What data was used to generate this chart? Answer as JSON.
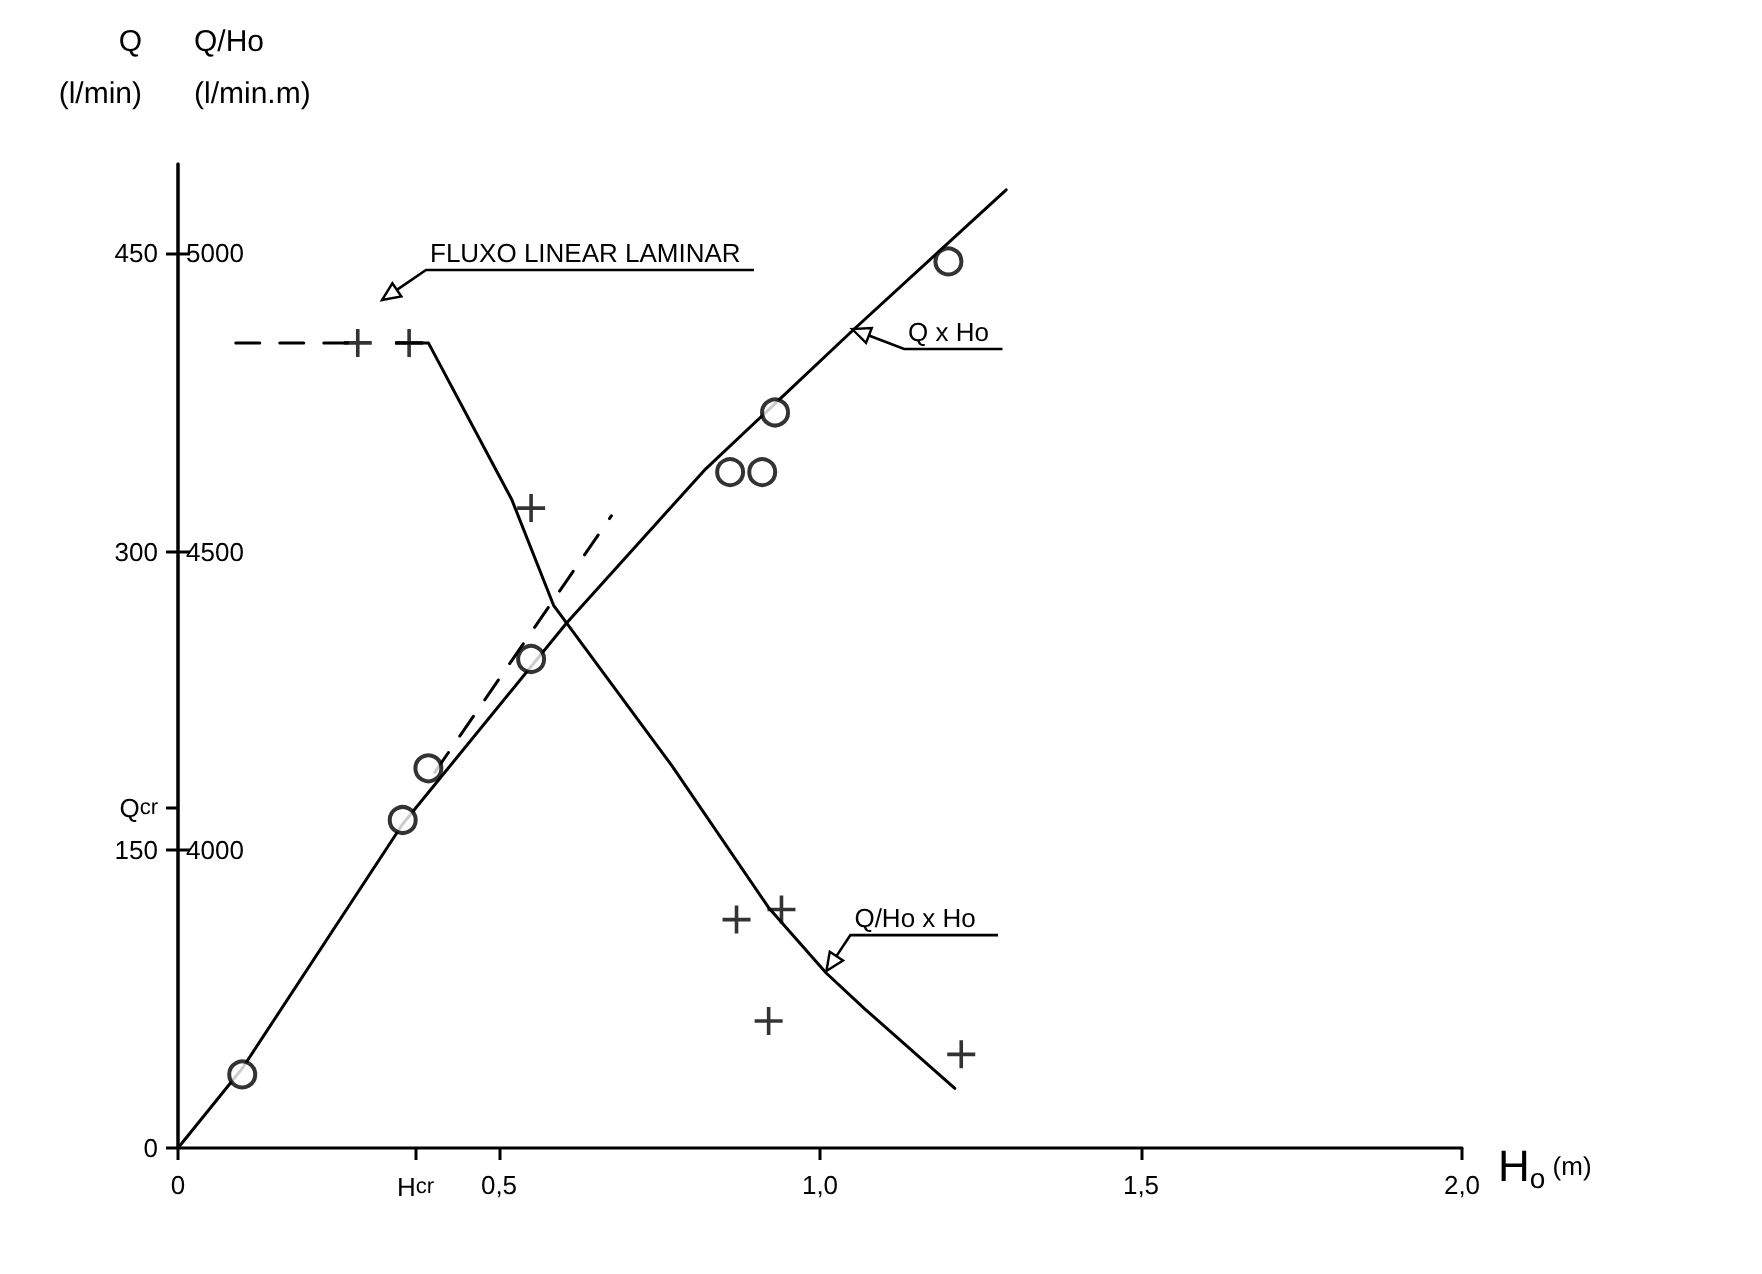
{
  "chart_data": {
    "type": "scatter",
    "xlabel": "H$_{o}$ (m)",
    "ylabel": "Q\n(l/min)",
    "y2label": "Q/Ho\n(l/min.m)",
    "xlim": [
      0,
      2.0
    ],
    "xticks": [
      0,
      {
        "value": 0.37,
        "label": "H$_{cr}$"
      },
      {
        "value": 0.5,
        "label": "0,5"
      },
      {
        "value": 1.0,
        "label": "1,0"
      },
      {
        "value": 1.5,
        "label": "1,5"
      },
      {
        "value": 2.0,
        "label": "2,0"
      }
    ],
    "ylim": [
      0,
      495
    ],
    "yticks": [
      0,
      150,
      {
        "value": 171,
        "label": "Q$_{cr}$"
      },
      300,
      450
    ],
    "y2lim": [
      3500,
      5150
    ],
    "y2ticks": [
      4000,
      4500,
      5000
    ],
    "series": [
      {
        "marker": "circle",
        "color": "#000000",
        "x": [
          0.1,
          0.35,
          0.39,
          0.55,
          0.86,
          0.91,
          0.93,
          1.2
        ],
        "values": [
          37,
          165,
          191,
          246,
          340,
          340,
          370,
          446
        ]
      },
      {
        "type": "line",
        "marker": "none",
        "line_style": "solid",
        "color": "#000000",
        "x": [
          0,
          0.1,
          0.35,
          0.605,
          0.82,
          1.05,
          1.29
        ],
        "values": [
          0,
          40,
          163,
          264,
          341,
          411,
          482
        ]
      },
      {
        "type": "line",
        "marker": "none",
        "line_style": "dashed",
        "color": "#000000",
        "x": [
          0.4,
          0.675
        ],
        "values": [
          189,
          318
        ]
      },
      {
        "marker": "cross",
        "axis": "y2",
        "color": "#000000",
        "x": [
          0.28,
          0.36,
          0.55,
          0.87,
          0.94,
          0.92,
          1.22
        ],
        "values": [
          4850,
          4850,
          4573,
          3883,
          3900,
          3713,
          3657
        ]
      },
      {
        "type": "line",
        "marker": "none",
        "line_style": "dashed",
        "axis": "y2",
        "color": "#000000",
        "x": [
          0.09,
          0.27
        ],
        "values": [
          4850,
          4850
        ]
      },
      {
        "type": "line",
        "marker": "none",
        "line_style": "solid",
        "axis": "y2",
        "color": "#000000",
        "x": [
          0.34,
          0.39,
          0.52,
          0.585,
          0.77,
          0.92,
          1.01,
          1.07,
          1.21
        ],
        "values": [
          4850,
          4850,
          4587,
          4410,
          4140,
          3903,
          3793,
          3733,
          3600
        ]
      }
    ],
    "annotations": [
      "FLUXO LINEAR LAMINAR",
      {
        "text": "Q x Ho",
        "x": 1.05,
        "y": 412
      },
      {
        "text": "Q/Ho x Ho",
        "x": 1.01,
        "y": 89
      }
    ]
  }
}
